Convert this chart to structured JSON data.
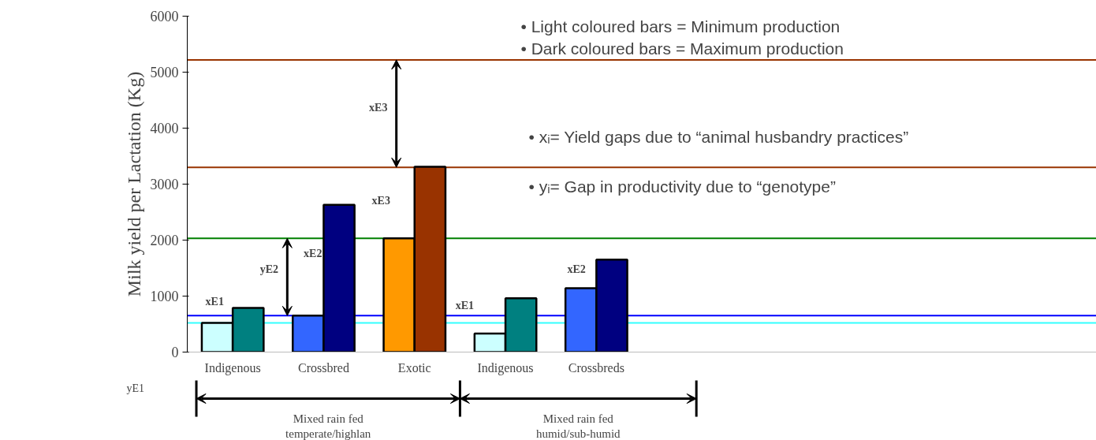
{
  "chart_data": {
    "type": "bar",
    "ylabel": "Milk yield per Lactation (Kg)",
    "categories": [
      "Indigenous",
      "Crossbred",
      "Exotic",
      "Indigenous",
      "Crossbreds"
    ],
    "series": [
      {
        "colors": [
          "#ccffff",
          "#3366ff",
          "#ff9900",
          "#ccffff",
          "#3366ff"
        ],
        "values": [
          520,
          650,
          2030,
          330,
          1140
        ]
      },
      {
        "colors": [
          "#008080",
          "#000080",
          "#993300",
          "#008080",
          "#000080"
        ],
        "values": [
          790,
          2630,
          3310,
          960,
          1650
        ]
      }
    ],
    "ylim": [
      0,
      6000
    ],
    "yticks": [
      0,
      1000,
      2000,
      3000,
      4000,
      5000,
      6000
    ],
    "grid": false,
    "ref_lines": [
      {
        "axis": "y",
        "value": 5220,
        "color": "#993300"
      },
      {
        "axis": "y",
        "value": 3300,
        "color": "#993300"
      },
      {
        "axis": "y",
        "value": 2030,
        "color": "#008000"
      },
      {
        "axis": "y",
        "value": 650,
        "color": "#0000ff"
      },
      {
        "axis": "y",
        "value": 520,
        "color": "#33ffff"
      }
    ],
    "annotations": [
      "xE3",
      "xE3",
      "yE2",
      "xE2",
      "xE1",
      "yE1",
      "xE1",
      "xE2",
      "•     Light coloured bars      = Minimum production",
      "•     Dark coloured bars       = Maximum production",
      "•     xᵢ= Yield gaps due to “animal husbandry practices”",
      "•     yᵢ= Gap in productivity due to “genotype”",
      "Mixed rain fed temperate/highlan",
      "Mixed rain fed humid/sub-humid"
    ]
  }
}
